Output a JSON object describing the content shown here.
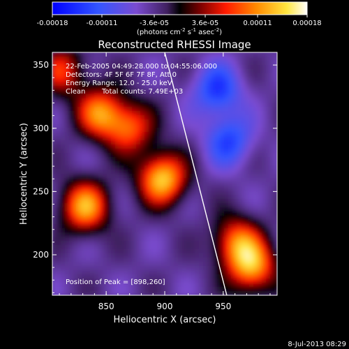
{
  "colorbar": {
    "ticks": [
      "-0.00018",
      "-0.00011",
      "-3.6e-05",
      "3.6e-05",
      "0.00011",
      "0.00018"
    ],
    "units_prefix": "(photons cm",
    "units_exp1": "-2",
    "units_mid": " s",
    "units_exp2": "-1",
    "units_mid2": " asec",
    "units_exp3": "-2",
    "units_suffix": ")",
    "vmin": -0.00018,
    "vmax": 0.00018
  },
  "chart_data": {
    "type": "heatmap",
    "title": "Reconstructed RHESSI Image",
    "xlabel": "Heliocentric X (arcsec)",
    "ylabel": "Heliocentric Y (arcsec)",
    "xlim": [
      804,
      996
    ],
    "ylim": [
      168,
      360
    ],
    "x_ticks": [
      "850",
      "900",
      "950"
    ],
    "y_ticks": [
      "200",
      "250",
      "300",
      "350"
    ],
    "x_tick_values": [
      850,
      900,
      950
    ],
    "y_tick_values": [
      200,
      250,
      300,
      350
    ],
    "annotations": {
      "time": "22-Feb-2005 04:49:28.000 to 04:55:06.000",
      "detectors": "Detectors: 4F 5F 6F 7F 8F, Att 0",
      "energy": "Energy Range: 12.0 - 25.0 keV",
      "method": "Clean",
      "counts": "Total counts: 7.49E+03",
      "peak": "Position of Peak = [898,260]"
    },
    "peak": [
      898,
      260
    ],
    "colormap": "rainbow-like (blue-purple-black-red-orange-yellow-white)",
    "features": [
      {
        "x": 845,
        "y": 312,
        "value": 0.00014
      },
      {
        "x": 832,
        "y": 238,
        "value": 0.00016
      },
      {
        "x": 898,
        "y": 260,
        "value": 0.00018
      },
      {
        "x": 870,
        "y": 300,
        "value": 0.00012
      },
      {
        "x": 812,
        "y": 345,
        "value": 0.0001
      },
      {
        "x": 962,
        "y": 210,
        "value": 0.00013
      },
      {
        "x": 975,
        "y": 190,
        "value": 0.00015
      },
      {
        "x": 955,
        "y": 290,
        "value": -9e-05
      },
      {
        "x": 945,
        "y": 330,
        "value": -0.0001
      }
    ],
    "limb_line": [
      [
        900,
        360
      ],
      [
        953,
        168
      ]
    ]
  },
  "footer": {
    "date": "8-Jul-2013 08:29"
  }
}
